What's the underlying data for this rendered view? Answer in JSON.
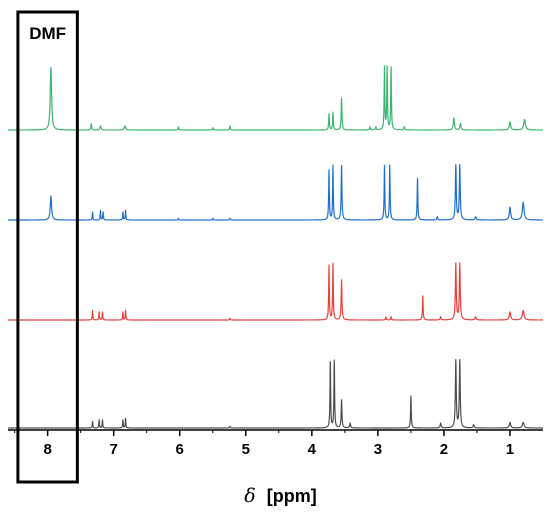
{
  "chart_data": {
    "type": "line",
    "xlabel_symbol": "δ",
    "xlabel_unit": "[ppm]",
    "x_reversed": true,
    "xlim": [
      8.6,
      0.5
    ],
    "xticks": [
      8,
      7,
      6,
      5,
      4,
      3,
      2,
      1
    ],
    "highlight": {
      "label": "DMF",
      "x_from": 8.45,
      "x_to": 7.55
    },
    "series": [
      {
        "color": "#3cb371",
        "peaks": [
          [
            7.95,
            0.78,
            0.012
          ],
          [
            7.34,
            0.08,
            0.006
          ],
          [
            7.2,
            0.05,
            0.01
          ],
          [
            6.83,
            0.05,
            0.012
          ],
          [
            6.02,
            0.04,
            0.006
          ],
          [
            5.5,
            0.03,
            0.006
          ],
          [
            5.24,
            0.05,
            0.006
          ],
          [
            3.74,
            0.2,
            0.006
          ],
          [
            3.68,
            0.22,
            0.006
          ],
          [
            3.55,
            0.4,
            0.007
          ],
          [
            3.12,
            0.04,
            0.006
          ],
          [
            3.03,
            0.04,
            0.006
          ],
          [
            2.9,
            0.78,
            0.006
          ],
          [
            2.86,
            0.78,
            0.006
          ],
          [
            2.8,
            0.78,
            0.006
          ],
          [
            2.6,
            0.04,
            0.008
          ],
          [
            1.85,
            0.15,
            0.01
          ],
          [
            1.75,
            0.08,
            0.01
          ],
          [
            1.0,
            0.1,
            0.012
          ],
          [
            0.78,
            0.13,
            0.015
          ]
        ]
      },
      {
        "color": "#1f6fd1",
        "peaks": [
          [
            7.95,
            0.3,
            0.012
          ],
          [
            7.32,
            0.1,
            0.005
          ],
          [
            7.2,
            0.12,
            0.005
          ],
          [
            7.16,
            0.1,
            0.005
          ],
          [
            6.86,
            0.1,
            0.005
          ],
          [
            6.82,
            0.12,
            0.005
          ],
          [
            6.02,
            0.02,
            0.006
          ],
          [
            5.5,
            0.02,
            0.006
          ],
          [
            5.24,
            0.02,
            0.006
          ],
          [
            3.74,
            0.62,
            0.006
          ],
          [
            3.68,
            0.68,
            0.006
          ],
          [
            3.55,
            0.68,
            0.007
          ],
          [
            2.9,
            0.68,
            0.006
          ],
          [
            2.82,
            0.68,
            0.006
          ],
          [
            2.4,
            0.52,
            0.006
          ],
          [
            2.1,
            0.04,
            0.008
          ],
          [
            1.82,
            0.68,
            0.008
          ],
          [
            1.76,
            0.68,
            0.008
          ],
          [
            1.52,
            0.04,
            0.01
          ],
          [
            1.0,
            0.16,
            0.012
          ],
          [
            0.8,
            0.22,
            0.015
          ]
        ]
      },
      {
        "color": "#e8413c",
        "peaks": [
          [
            7.32,
            0.12,
            0.005
          ],
          [
            7.22,
            0.1,
            0.005
          ],
          [
            7.17,
            0.1,
            0.005
          ],
          [
            6.86,
            0.1,
            0.005
          ],
          [
            6.82,
            0.12,
            0.005
          ],
          [
            5.24,
            0.02,
            0.006
          ],
          [
            3.74,
            0.68,
            0.006
          ],
          [
            3.68,
            0.7,
            0.006
          ],
          [
            3.55,
            0.5,
            0.007
          ],
          [
            2.88,
            0.04,
            0.006
          ],
          [
            2.8,
            0.04,
            0.006
          ],
          [
            2.32,
            0.3,
            0.006
          ],
          [
            2.05,
            0.04,
            0.008
          ],
          [
            1.82,
            0.7,
            0.008
          ],
          [
            1.76,
            0.7,
            0.008
          ],
          [
            1.52,
            0.04,
            0.01
          ],
          [
            1.0,
            0.1,
            0.012
          ],
          [
            0.8,
            0.12,
            0.015
          ]
        ]
      },
      {
        "color": "#4d4d4d",
        "peaks": [
          [
            7.32,
            0.08,
            0.005
          ],
          [
            7.22,
            0.1,
            0.005
          ],
          [
            7.17,
            0.1,
            0.005
          ],
          [
            6.86,
            0.1,
            0.005
          ],
          [
            6.82,
            0.12,
            0.005
          ],
          [
            5.24,
            0.02,
            0.006
          ],
          [
            3.72,
            0.82,
            0.006
          ],
          [
            3.66,
            0.84,
            0.006
          ],
          [
            3.55,
            0.35,
            0.007
          ],
          [
            3.42,
            0.06,
            0.008
          ],
          [
            2.5,
            0.4,
            0.006
          ],
          [
            2.05,
            0.06,
            0.008
          ],
          [
            1.82,
            0.84,
            0.008
          ],
          [
            1.76,
            0.84,
            0.008
          ],
          [
            1.55,
            0.04,
            0.01
          ],
          [
            1.0,
            0.07,
            0.012
          ],
          [
            0.8,
            0.07,
            0.015
          ]
        ]
      }
    ]
  }
}
